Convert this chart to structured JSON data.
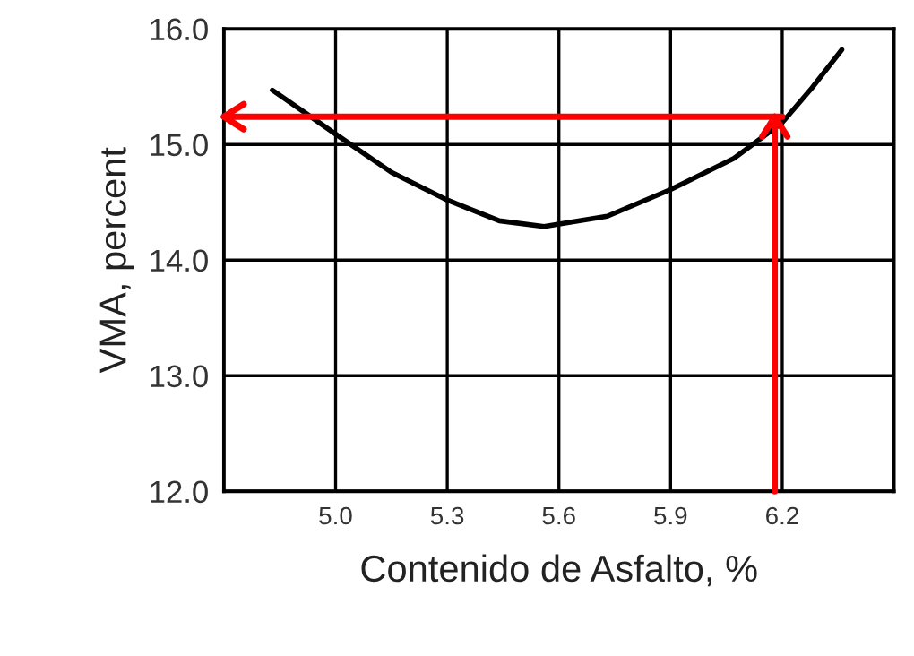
{
  "chart_data": {
    "type": "line",
    "xlabel": "Contenido de Asfalto, %",
    "ylabel": "VMA, percent",
    "xlim": [
      4.7,
      6.5
    ],
    "xticks": [
      {
        "value": 5.0,
        "label": "5.0"
      },
      {
        "value": 5.3,
        "label": "5.3"
      },
      {
        "value": 5.6,
        "label": "5.6"
      },
      {
        "value": 5.9,
        "label": "5.9"
      },
      {
        "value": 6.2,
        "label": "6.2"
      }
    ],
    "ylim": [
      12.0,
      16.0
    ],
    "yticks": [
      {
        "value": 12.0,
        "label": "12.0"
      },
      {
        "value": 13.0,
        "label": "13.0"
      },
      {
        "value": 14.0,
        "label": "14.0"
      },
      {
        "value": 15.0,
        "label": "15.0"
      },
      {
        "value": 16.0,
        "label": "16.0"
      }
    ],
    "grid": true,
    "marker": "none",
    "line_style": "solid",
    "series": [
      {
        "color": "#000000",
        "x": [
          4.83,
          4.92,
          5.0,
          5.15,
          5.3,
          5.44,
          5.56,
          5.73,
          5.9,
          6.07,
          6.2,
          6.28,
          6.36
        ],
        "values": [
          15.47,
          15.27,
          15.09,
          14.76,
          14.52,
          14.34,
          14.29,
          14.38,
          14.61,
          14.88,
          15.19,
          15.49,
          15.82
        ]
      },
      {
        "color": "#ff0000",
        "x": [
          6.18,
          6.18
        ],
        "values": [
          12.0,
          15.24
        ]
      },
      {
        "color": "#ff0000",
        "x": [
          6.2,
          4.7
        ],
        "values": [
          15.24,
          15.24
        ]
      }
    ]
  }
}
